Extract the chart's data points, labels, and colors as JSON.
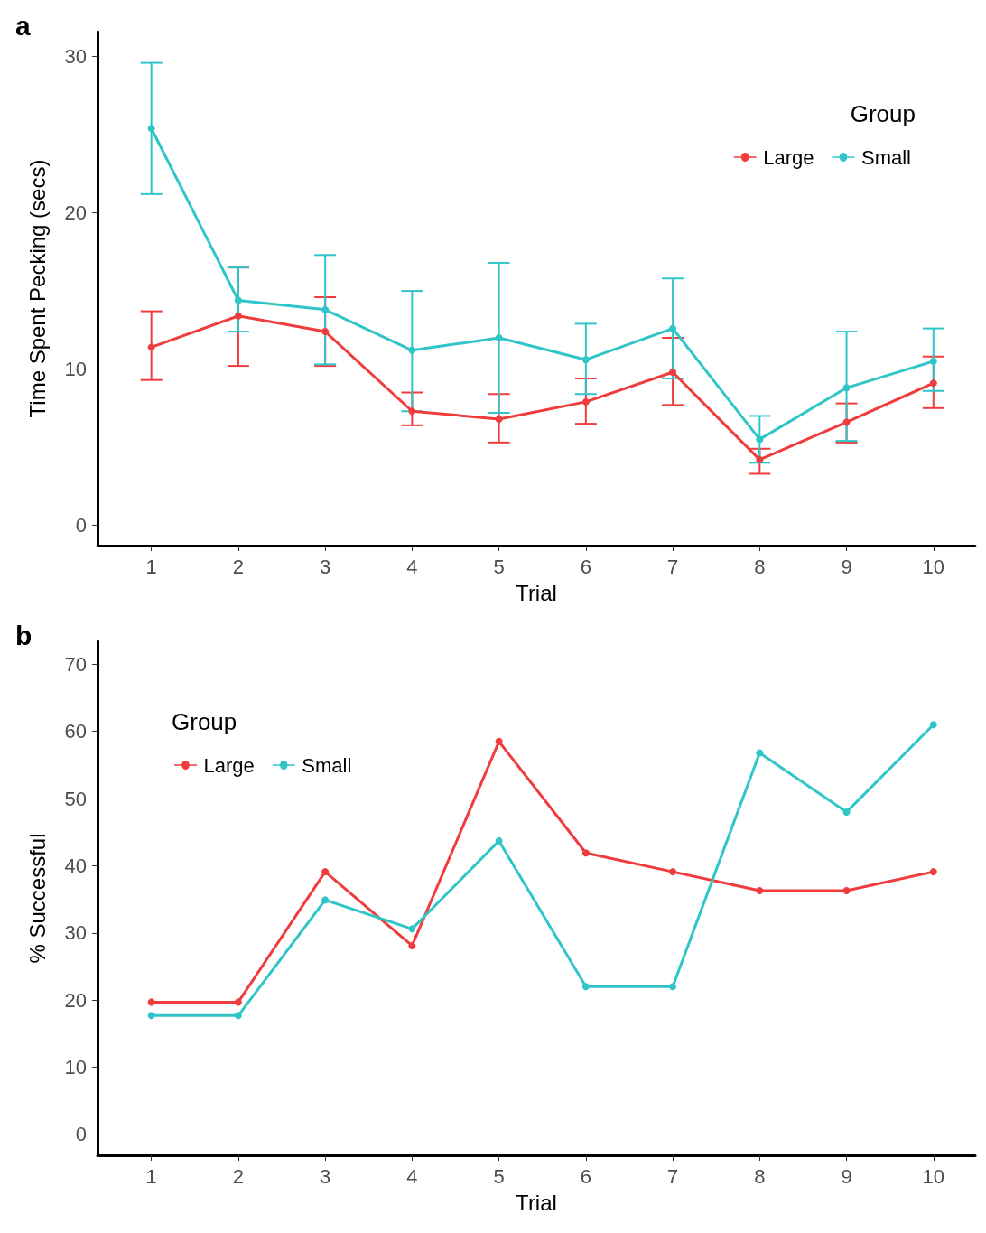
{
  "chart_data": [
    {
      "type": "line",
      "title": "a",
      "xlabel": "Trial",
      "ylabel": "Time Spent Pecking (secs)",
      "legend_title": "Group",
      "legend": "top right",
      "marker": "circle",
      "grid": false,
      "x": [
        1,
        2,
        3,
        4,
        5,
        6,
        7,
        8,
        9,
        10
      ],
      "xlim": [
        0.38,
        10.48
      ],
      "xticks": [
        1,
        2,
        3,
        4,
        5,
        6,
        7,
        8,
        9,
        10
      ],
      "ylim": [
        -1.3,
        31.6
      ],
      "yticks": [
        0,
        10,
        20,
        30
      ],
      "series": [
        {
          "name": "Large",
          "color": "#f03c3c",
          "values": [
            11.4,
            13.4,
            12.4,
            7.3,
            6.8,
            7.9,
            9.8,
            4.2,
            6.6,
            9.1
          ],
          "errors": [
            [
              9.3,
              13.7
            ],
            [
              10.2,
              16.5
            ],
            [
              10.2,
              14.6
            ],
            [
              6.4,
              8.5
            ],
            [
              5.3,
              8.4
            ],
            [
              6.5,
              9.4
            ],
            [
              7.7,
              12.0
            ],
            [
              3.3,
              4.9
            ],
            [
              5.3,
              7.8
            ],
            [
              7.5,
              10.8
            ]
          ]
        },
        {
          "name": "Small",
          "color": "#30c5c8",
          "values": [
            25.4,
            14.4,
            13.8,
            11.2,
            12.0,
            10.6,
            12.6,
            5.5,
            8.8,
            10.5
          ],
          "errors": [
            [
              21.2,
              29.6
            ],
            [
              12.4,
              16.5
            ],
            [
              10.3,
              17.3
            ],
            [
              7.3,
              15.0
            ],
            [
              7.2,
              16.8
            ],
            [
              8.4,
              12.9
            ],
            [
              9.4,
              15.8
            ],
            [
              4.0,
              7.0
            ],
            [
              5.4,
              12.4
            ],
            [
              8.6,
              12.6
            ]
          ]
        }
      ]
    },
    {
      "type": "line",
      "title": "b",
      "xlabel": "Trial",
      "ylabel": "% Successful",
      "legend_title": "Group",
      "legend": "top left",
      "marker": "circle",
      "grid": false,
      "x": [
        1,
        2,
        3,
        4,
        5,
        6,
        7,
        8,
        9,
        10
      ],
      "xlim": [
        0.38,
        10.48
      ],
      "xticks": [
        1,
        2,
        3,
        4,
        5,
        6,
        7,
        8,
        9,
        10
      ],
      "ylim": [
        -3.1,
        73.4
      ],
      "yticks": [
        0,
        10,
        20,
        30,
        40,
        50,
        60,
        70
      ],
      "series": [
        {
          "name": "Large",
          "color": "#f03c3c",
          "values": [
            19.7,
            19.7,
            39.1,
            28.1,
            58.5,
            41.9,
            39.1,
            36.3,
            36.3,
            39.1
          ]
        },
        {
          "name": "Small",
          "color": "#30c5c8",
          "values": [
            17.7,
            17.7,
            34.9,
            30.6,
            43.7,
            22.0,
            22.0,
            56.8,
            48.0,
            61.0
          ]
        }
      ]
    }
  ]
}
